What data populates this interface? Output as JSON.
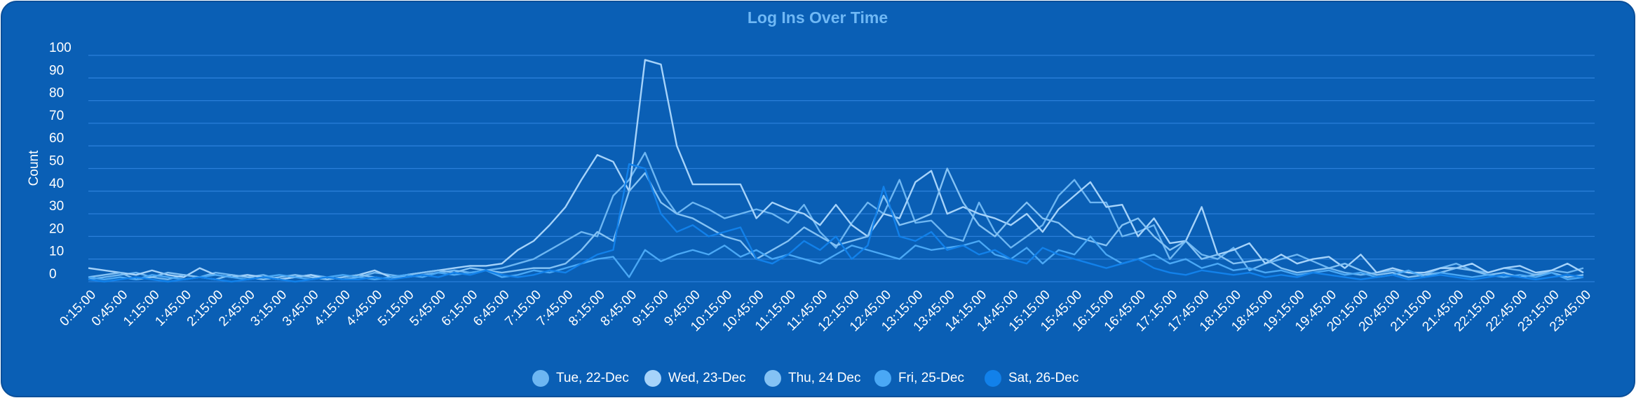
{
  "chart_data": {
    "type": "line",
    "title": "Log Ins Over Time",
    "y_label": "Count",
    "categories": [
      "0:15:00",
      null,
      "0:45:00",
      null,
      "1:15:00",
      null,
      "1:45:00",
      null,
      "2:15:00",
      null,
      "2:45:00",
      null,
      "3:15:00",
      null,
      "3:45:00",
      null,
      "4:15:00",
      null,
      "4:45:00",
      null,
      "5:15:00",
      null,
      "5:45:00",
      null,
      "6:15:00",
      null,
      "6:45:00",
      null,
      "7:15:00",
      null,
      "7:45:00",
      null,
      "8:15:00",
      null,
      "8:45:00",
      null,
      "9:15:00",
      null,
      "9:45:00",
      null,
      "10:15:00",
      null,
      "10:45:00",
      null,
      "11:15:00",
      null,
      "11:45:00",
      null,
      "12:15:00",
      null,
      "12:45:00",
      null,
      "13:15:00",
      null,
      "13:45:00",
      null,
      "14:15:00",
      null,
      "14:45:00",
      null,
      "15:15:00",
      null,
      "15:45:00",
      null,
      "16:15:00",
      null,
      "16:45:00",
      null,
      "17:15:00",
      null,
      "17:45:00",
      null,
      "18:15:00",
      null,
      "18:45:00",
      null,
      "19:15:00",
      null,
      "19:45:00",
      null,
      "20:15:00",
      null,
      "20:45:00",
      null,
      "21:15:00",
      null,
      "21:45:00",
      null,
      "22:15:00",
      null,
      "22:45:00",
      null,
      "23:15:00",
      null,
      "23:45:00"
    ],
    "series": [
      {
        "name": "Tue, 22-Dec",
        "color": "#6db6f2",
        "values": [
          1,
          2,
          3,
          4,
          2,
          1,
          3,
          2,
          4,
          3,
          2,
          3,
          1,
          2,
          3,
          2,
          1,
          2,
          4,
          3,
          2,
          3,
          4,
          5,
          4,
          5,
          6,
          8,
          10,
          14,
          18,
          22,
          20,
          38,
          45,
          57,
          40,
          30,
          35,
          32,
          28,
          30,
          32,
          30,
          26,
          34,
          22,
          15,
          26,
          35,
          30,
          45,
          26,
          27,
          20,
          18,
          35,
          22,
          15,
          20,
          25,
          38,
          45,
          35,
          35,
          20,
          22,
          25,
          10,
          18,
          12,
          10,
          15,
          5,
          8,
          10,
          12,
          9,
          6,
          4,
          3,
          4,
          5,
          4,
          3,
          6,
          8,
          5,
          4,
          6,
          5,
          3,
          5,
          4,
          6
        ]
      },
      {
        "name": "Wed, 23-Dec",
        "color": "#a6d3fa",
        "values": [
          6,
          5,
          4,
          3,
          5,
          3,
          2,
          6,
          3,
          2,
          3,
          2,
          1,
          2,
          3,
          1,
          2,
          3,
          5,
          2,
          3,
          4,
          5,
          6,
          7,
          7,
          8,
          14,
          18,
          25,
          33,
          45,
          56,
          53,
          40,
          98,
          96,
          60,
          43,
          43,
          43,
          43,
          28,
          35,
          32,
          30,
          25,
          34,
          25,
          20,
          30,
          28,
          44,
          49,
          30,
          33,
          30,
          28,
          25,
          30,
          22,
          32,
          38,
          44,
          33,
          34,
          20,
          28,
          17,
          18,
          33,
          12,
          14,
          17,
          8,
          12,
          8,
          10,
          11,
          6,
          12,
          4,
          6,
          4,
          4,
          6,
          6,
          8,
          4,
          6,
          7,
          4,
          5,
          8,
          4
        ]
      },
      {
        "name": "Thu, 24 Dec",
        "color": "#84c2f4",
        "values": [
          2,
          3,
          4,
          1,
          2,
          4,
          3,
          2,
          1,
          3,
          2,
          1,
          2,
          3,
          2,
          1,
          2,
          3,
          2,
          1,
          3,
          4,
          5,
          4,
          6,
          5,
          4,
          5,
          6,
          6,
          8,
          14,
          22,
          18,
          40,
          48,
          35,
          30,
          28,
          24,
          20,
          18,
          10,
          14,
          18,
          24,
          20,
          16,
          18,
          20,
          38,
          25,
          27,
          30,
          50,
          35,
          25,
          20,
          28,
          35,
          28,
          26,
          20,
          18,
          16,
          25,
          28,
          20,
          14,
          18,
          10,
          12,
          8,
          9,
          10,
          6,
          4,
          5,
          6,
          8,
          5,
          3,
          4,
          2,
          3,
          4,
          6,
          5,
          3,
          4,
          2,
          3,
          4,
          2,
          3
        ]
      },
      {
        "name": "Fri, 25-Dec",
        "color": "#4aa8f5",
        "values": [
          2,
          1,
          2,
          1,
          3,
          2,
          1,
          2,
          3,
          2,
          1,
          2,
          3,
          2,
          1,
          2,
          3,
          2,
          1,
          2,
          3,
          2,
          4,
          3,
          4,
          5,
          2,
          3,
          5,
          4,
          6,
          8,
          10,
          11,
          2,
          14,
          9,
          12,
          14,
          12,
          16,
          11,
          14,
          10,
          12,
          10,
          8,
          12,
          16,
          14,
          12,
          10,
          16,
          14,
          15,
          16,
          18,
          12,
          10,
          15,
          8,
          14,
          12,
          20,
          12,
          8,
          10,
          12,
          8,
          10,
          6,
          8,
          5,
          6,
          4,
          5,
          3,
          4,
          5,
          3,
          4,
          2,
          3,
          5,
          2,
          4,
          3,
          2,
          3,
          2,
          3,
          2,
          4,
          1,
          2
        ]
      },
      {
        "name": "Sat, 26-Dec",
        "color": "#1281ea",
        "values": [
          1,
          0,
          1,
          2,
          1,
          0,
          1,
          2,
          1,
          0,
          1,
          2,
          1,
          0,
          1,
          2,
          1,
          1,
          2,
          1,
          2,
          3,
          2,
          4,
          3,
          5,
          3,
          2,
          3,
          5,
          4,
          8,
          12,
          14,
          52,
          50,
          30,
          22,
          25,
          20,
          22,
          24,
          10,
          8,
          12,
          18,
          14,
          20,
          10,
          16,
          42,
          20,
          18,
          22,
          14,
          16,
          12,
          14,
          10,
          8,
          15,
          12,
          10,
          8,
          6,
          8,
          10,
          6,
          4,
          3,
          5,
          4,
          3,
          4,
          2,
          3,
          2,
          4,
          3,
          2,
          1,
          2,
          3,
          1,
          2,
          3,
          2,
          1,
          2,
          3,
          2,
          1,
          2,
          3,
          2
        ]
      }
    ],
    "ylim": [
      0,
      100
    ],
    "yticks": [
      0,
      10,
      20,
      30,
      40,
      50,
      60,
      70,
      80,
      90,
      100
    ],
    "grid": true,
    "legend": "bottom"
  }
}
